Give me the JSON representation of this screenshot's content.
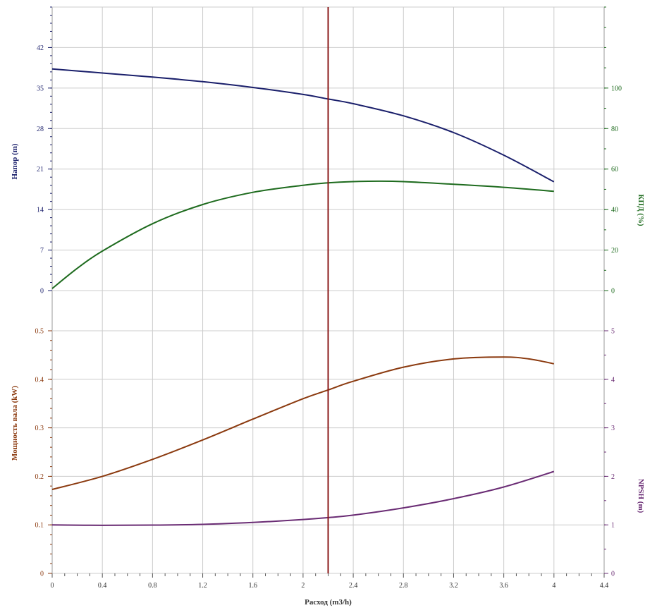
{
  "chart_data": {
    "type": "line",
    "x_axis": {
      "label": "Расход (m3/h)",
      "range": [
        0,
        4.4
      ],
      "ticks": [
        "0",
        "0.4",
        "0.8",
        "1.2",
        "1.6",
        "2",
        "2.4",
        "2.8",
        "3.2",
        "3.6",
        "4",
        "4.4"
      ]
    },
    "operating_point_x": 2.2,
    "colors": {
      "head": "#1a1f6b",
      "efficiency": "#1e6b1e",
      "power": "#8b3a0f",
      "npsh": "#6a2c74",
      "operating_line": "#8b1a1a",
      "grid": "#cccccc",
      "frame": "#999999"
    },
    "panels": [
      {
        "id": "top",
        "left_axis": {
          "label": "Напор (m)",
          "range": [
            0,
            49
          ],
          "ticks": [
            "0",
            "7",
            "14",
            "21",
            "28",
            "35",
            "42"
          ],
          "color": "#1a1f6b"
        },
        "right_axis": {
          "label": "КПД (%)",
          "range": [
            0,
            140
          ],
          "ticks": [
            "0",
            "20",
            "40",
            "60",
            "80",
            "100"
          ],
          "color": "#1e6b1e"
        },
        "series": [
          {
            "name": "Напор (m)",
            "axis": "left",
            "color": "#1a1f6b",
            "points": [
              [
                0,
                38.3
              ],
              [
                0.4,
                37.6
              ],
              [
                0.8,
                36.9
              ],
              [
                1.2,
                36.1
              ],
              [
                1.6,
                35.1
              ],
              [
                2.0,
                33.9
              ],
              [
                2.2,
                33.1
              ],
              [
                2.4,
                32.3
              ],
              [
                2.8,
                30.2
              ],
              [
                3.2,
                27.3
              ],
              [
                3.6,
                23.4
              ],
              [
                4.0,
                18.8
              ]
            ]
          },
          {
            "name": "КПД (%)",
            "axis": "right",
            "color": "#1e6b1e",
            "points": [
              [
                0,
                1
              ],
              [
                0.2,
                11
              ],
              [
                0.4,
                19.5
              ],
              [
                0.8,
                33
              ],
              [
                1.2,
                42.5
              ],
              [
                1.6,
                48.5
              ],
              [
                2.0,
                52
              ],
              [
                2.2,
                53.2
              ],
              [
                2.4,
                53.8
              ],
              [
                2.6,
                54
              ],
              [
                2.8,
                53.8
              ],
              [
                3.2,
                52.5
              ],
              [
                3.6,
                51
              ],
              [
                4.0,
                49
              ]
            ]
          }
        ]
      },
      {
        "id": "bottom",
        "left_axis": {
          "label": "Мощность вала (kW)",
          "range": [
            0,
            0.5
          ],
          "ticks": [
            "0",
            "0.1",
            "0.2",
            "0.3",
            "0.4",
            "0.5"
          ],
          "color": "#8b3a0f"
        },
        "right_axis": {
          "label": "NPSH (m)",
          "range": [
            0,
            5
          ],
          "ticks": [
            "0",
            "1",
            "2",
            "3",
            "4",
            "5"
          ],
          "color": "#6a2c74"
        },
        "series": [
          {
            "name": "Мощность вала (kW)",
            "axis": "left",
            "color": "#8b3a0f",
            "points": [
              [
                0,
                0.173
              ],
              [
                0.4,
                0.2
              ],
              [
                0.8,
                0.235
              ],
              [
                1.2,
                0.275
              ],
              [
                1.6,
                0.318
              ],
              [
                2.0,
                0.36
              ],
              [
                2.2,
                0.378
              ],
              [
                2.4,
                0.396
              ],
              [
                2.8,
                0.425
              ],
              [
                3.2,
                0.442
              ],
              [
                3.6,
                0.446
              ],
              [
                3.8,
                0.442
              ],
              [
                4.0,
                0.432
              ]
            ]
          },
          {
            "name": "NPSH (m)",
            "axis": "right",
            "color": "#6a2c74",
            "points": [
              [
                0,
                1.0
              ],
              [
                0.4,
                0.99
              ],
              [
                0.8,
                0.995
              ],
              [
                1.2,
                1.01
              ],
              [
                1.6,
                1.05
              ],
              [
                2.0,
                1.11
              ],
              [
                2.2,
                1.15
              ],
              [
                2.4,
                1.2
              ],
              [
                2.8,
                1.35
              ],
              [
                3.2,
                1.54
              ],
              [
                3.6,
                1.78
              ],
              [
                4.0,
                2.1
              ]
            ]
          }
        ]
      }
    ]
  }
}
